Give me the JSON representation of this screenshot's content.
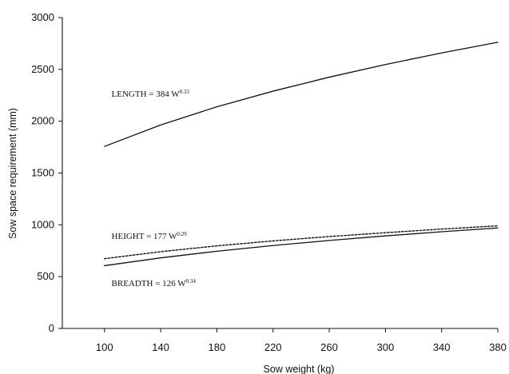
{
  "chart_data": {
    "type": "line",
    "title": "",
    "xlabel": "Sow weight (kg)",
    "ylabel": "Sow space requirement (mm)",
    "xlim": [
      70,
      380
    ],
    "ylim": [
      0,
      3000
    ],
    "x_ticks": [
      100,
      140,
      180,
      220,
      260,
      300,
      340,
      380
    ],
    "y_ticks": [
      0,
      500,
      1000,
      1500,
      2000,
      2500,
      3000
    ],
    "grid": false,
    "legend": "none",
    "x": [
      100,
      140,
      180,
      220,
      260,
      300,
      340,
      380
    ],
    "series": [
      {
        "name": "LENGTH",
        "style": "solid",
        "color": "#111111",
        "values": [
          1757,
          1964,
          2139,
          2290,
          2425,
          2547,
          2659,
          2762
        ]
      },
      {
        "name": "HEIGHT",
        "style": "dotted",
        "color": "#111111",
        "values": [
          673,
          741,
          797,
          845,
          887,
          924,
          959,
          990
        ]
      },
      {
        "name": "BREADTH",
        "style": "solid",
        "color": "#111111",
        "values": [
          606,
          681,
          745,
          800,
          849,
          893,
          933,
          970
        ]
      }
    ],
    "annotations": [
      {
        "text": "LENGTH = 384 W",
        "exponent": "0.33",
        "x": 105,
        "y": 2235
      },
      {
        "text": "HEIGHT = 177 W",
        "exponent": "0.29",
        "x": 105,
        "y": 865
      },
      {
        "text": "BREADTH = 126 W",
        "exponent": "0.34",
        "x": 105,
        "y": 410
      }
    ]
  }
}
